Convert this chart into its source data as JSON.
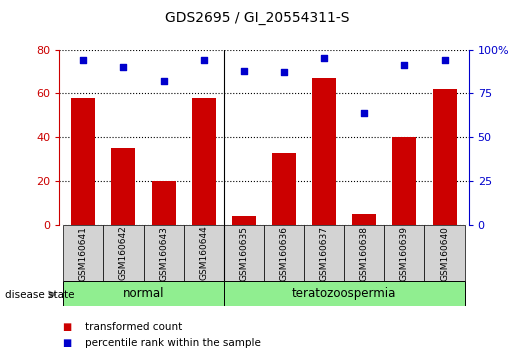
{
  "title": "GDS2695 / GI_20554311-S",
  "samples": [
    "GSM160641",
    "GSM160642",
    "GSM160643",
    "GSM160644",
    "GSM160635",
    "GSM160636",
    "GSM160637",
    "GSM160638",
    "GSM160639",
    "GSM160640"
  ],
  "transformed_count": [
    58,
    35,
    20,
    58,
    4,
    33,
    67,
    5,
    40,
    62
  ],
  "percentile_rank": [
    94,
    90,
    82,
    94,
    88,
    87,
    95,
    64,
    91,
    94
  ],
  "bar_color": "#cc0000",
  "dot_color": "#0000cc",
  "left_ylim": [
    0,
    80
  ],
  "right_ylim": [
    0,
    100
  ],
  "left_yticks": [
    0,
    20,
    40,
    60,
    80
  ],
  "right_yticks": [
    0,
    25,
    50,
    75,
    100
  ],
  "right_yticklabels": [
    "0",
    "25",
    "50",
    "75",
    "100%"
  ],
  "grid_color": "black",
  "normal_label": "normal",
  "tera_label": "teratozoospermia",
  "separator_index": 4,
  "disease_state_label": "disease state",
  "legend_items": [
    {
      "label": "transformed count",
      "color": "#cc0000"
    },
    {
      "label": "percentile rank within the sample",
      "color": "#0000cc"
    }
  ],
  "group_color": "#90ee90",
  "label_box_color": "#d3d3d3"
}
